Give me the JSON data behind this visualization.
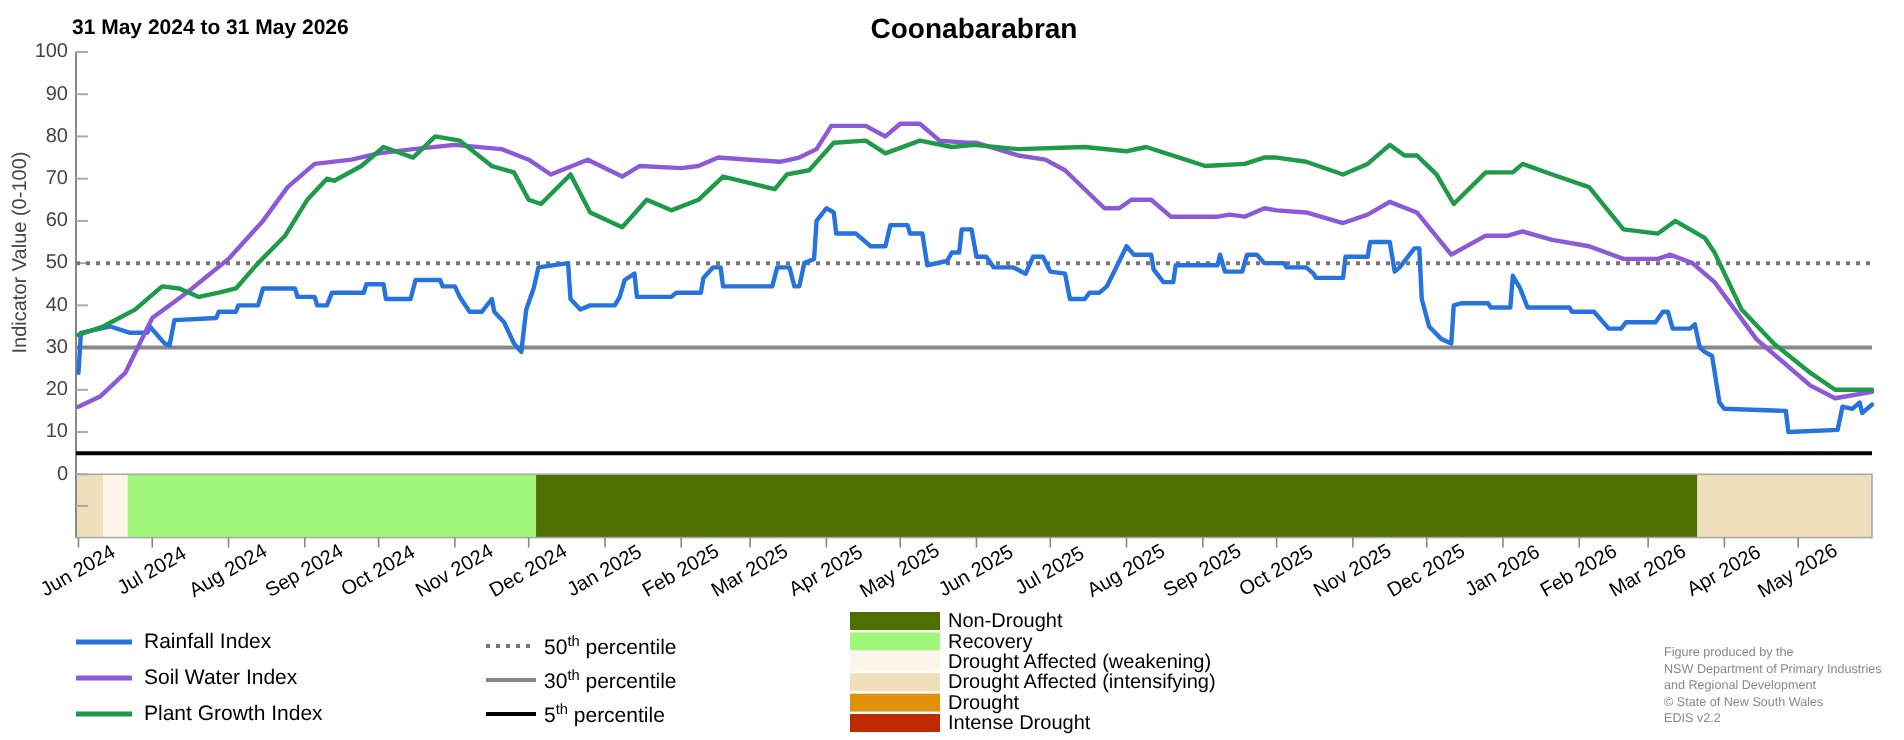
{
  "chart_data": {
    "type": "line",
    "title": "Coonabarabran",
    "subtitle": "31 May 2024 to 31 May 2026",
    "ylabel": "Indicator Value (0-100)",
    "xlim": [
      "2024-05-31",
      "2026-05-31"
    ],
    "xticks": [
      {
        "value": "2024-06-01",
        "label": "Jun 2024"
      },
      {
        "value": "2024-07-01",
        "label": "Jul 2024"
      },
      {
        "value": "2024-08-01",
        "label": "Aug 2024"
      },
      {
        "value": "2024-09-01",
        "label": "Sep 2024"
      },
      {
        "value": "2024-10-01",
        "label": "Oct 2024"
      },
      {
        "value": "2024-11-01",
        "label": "Nov 2024"
      },
      {
        "value": "2024-12-01",
        "label": "Dec 2024"
      },
      {
        "value": "2025-01-01",
        "label": "Jan 2025"
      },
      {
        "value": "2025-02-01",
        "label": "Feb 2025"
      },
      {
        "value": "2025-03-01",
        "label": "Mar 2025"
      },
      {
        "value": "2025-04-01",
        "label": "Apr 2025"
      },
      {
        "value": "2025-05-01",
        "label": "May 2025"
      },
      {
        "value": "2025-06-01",
        "label": "Jun 2025"
      },
      {
        "value": "2025-07-01",
        "label": "Jul 2025"
      },
      {
        "value": "2025-08-01",
        "label": "Aug 2025"
      },
      {
        "value": "2025-09-01",
        "label": "Sep 2025"
      },
      {
        "value": "2025-10-01",
        "label": "Oct 2025"
      },
      {
        "value": "2025-11-01",
        "label": "Nov 2025"
      },
      {
        "value": "2025-12-01",
        "label": "Dec 2025"
      },
      {
        "value": "2026-01-01",
        "label": "Jan 2026"
      },
      {
        "value": "2026-02-01",
        "label": "Feb 2026"
      },
      {
        "value": "2026-03-01",
        "label": "Mar 2026"
      },
      {
        "value": "2026-04-01",
        "label": "Apr 2026"
      },
      {
        "value": "2026-05-01",
        "label": "May 2026"
      }
    ],
    "ylim": [
      -15,
      100
    ],
    "yticks": [
      {
        "value": -7.5,
        "label": null
      },
      0,
      10,
      20,
      30,
      40,
      50,
      60,
      70,
      80,
      90,
      100
    ],
    "legend": "bottom",
    "series": [
      {
        "name": "Rainfall Index",
        "color": "#2673e0",
        "x": [
          "2024-06-01",
          "2024-06-02",
          "2024-06-14",
          "2024-06-22",
          "2024-06-29",
          "2024-06-30",
          "2024-07-06",
          "2024-07-08",
          "2024-07-10",
          "2024-07-27",
          "2024-07-28",
          "2024-08-04",
          "2024-08-05",
          "2024-08-13",
          "2024-08-15",
          "2024-08-28",
          "2024-08-29",
          "2024-09-05",
          "2024-09-06",
          "2024-09-10",
          "2024-09-12",
          "2024-09-25",
          "2024-09-26",
          "2024-10-03",
          "2024-10-04",
          "2024-10-14",
          "2024-10-16",
          "2024-10-26",
          "2024-10-27",
          "2024-11-01",
          "2024-11-03",
          "2024-11-07",
          "2024-11-12",
          "2024-11-16",
          "2024-11-17",
          "2024-11-21",
          "2024-11-25",
          "2024-11-28",
          "2024-11-30",
          "2024-12-03",
          "2024-12-05",
          "2024-12-17",
          "2024-12-18",
          "2024-12-22",
          "2024-12-26",
          "2025-01-05",
          "2025-01-07",
          "2025-01-09",
          "2025-01-13",
          "2025-01-14",
          "2025-01-28",
          "2025-01-30",
          "2025-02-09",
          "2025-02-10",
          "2025-02-14",
          "2025-02-17",
          "2025-02-18",
          "2025-03-10",
          "2025-03-12",
          "2025-03-17",
          "2025-03-19",
          "2025-03-21",
          "2025-03-23",
          "2025-03-27",
          "2025-03-28",
          "2025-04-01",
          "2025-04-04",
          "2025-04-05",
          "2025-04-13",
          "2025-04-19",
          "2025-04-25",
          "2025-04-27",
          "2025-05-04",
          "2025-05-05",
          "2025-05-10",
          "2025-05-12",
          "2025-05-20",
          "2025-05-22",
          "2025-05-25",
          "2025-05-26",
          "2025-05-30",
          "2025-06-01",
          "2025-06-05",
          "2025-06-08",
          "2025-06-16",
          "2025-06-21",
          "2025-06-24",
          "2025-06-28",
          "2025-07-01",
          "2025-07-07",
          "2025-07-09",
          "2025-07-15",
          "2025-07-17",
          "2025-07-21",
          "2025-07-24",
          "2025-07-27",
          "2025-08-01",
          "2025-08-04",
          "2025-08-11",
          "2025-08-12",
          "2025-08-16",
          "2025-08-20",
          "2025-08-21",
          "2025-09-07",
          "2025-09-08",
          "2025-09-10",
          "2025-09-17",
          "2025-09-19",
          "2025-09-23",
          "2025-09-26",
          "2025-10-04",
          "2025-10-05",
          "2025-10-13",
          "2025-10-16",
          "2025-10-17",
          "2025-10-28",
          "2025-10-29",
          "2025-11-07",
          "2025-11-08",
          "2025-11-16",
          "2025-11-18",
          "2025-11-20",
          "2025-11-26",
          "2025-11-28",
          "2025-11-29",
          "2025-12-02",
          "2025-12-07",
          "2025-12-11",
          "2025-12-12",
          "2025-12-15",
          "2025-12-26",
          "2025-12-27",
          "2026-01-04",
          "2026-01-05",
          "2026-01-08",
          "2026-01-11",
          "2026-01-28",
          "2026-01-29",
          "2026-02-07",
          "2026-02-13",
          "2026-02-18",
          "2026-02-20",
          "2026-03-04",
          "2026-03-07",
          "2026-03-09",
          "2026-03-11",
          "2026-03-18",
          "2026-03-20",
          "2026-03-22",
          "2026-03-24",
          "2026-03-27",
          "2026-03-30",
          "2026-04-01",
          "2026-04-26",
          "2026-04-27",
          "2026-05-17",
          "2026-05-19",
          "2026-05-23",
          "2026-05-26",
          "2026-05-27",
          "2026-05-31"
        ],
        "values": [
          24,
          33.5,
          35,
          33.5,
          33.5,
          35,
          31,
          30.5,
          36.5,
          37,
          38.5,
          38.5,
          40,
          40,
          44,
          44,
          42,
          42,
          40,
          40,
          43,
          43,
          45,
          45,
          41.5,
          41.5,
          46,
          46,
          44.5,
          44.5,
          42,
          38.5,
          38.5,
          41.5,
          38.5,
          36,
          31,
          29,
          39,
          44,
          49,
          50,
          41.5,
          39,
          40,
          40,
          42,
          46,
          47.5,
          42,
          42,
          43,
          43,
          46.5,
          49,
          49,
          44.5,
          44.5,
          49,
          49,
          44.5,
          44.5,
          50,
          51,
          60,
          63,
          62,
          57,
          57,
          54,
          54,
          59,
          59,
          57,
          57,
          49.5,
          50.5,
          52.5,
          52.5,
          58,
          58,
          51.5,
          51.5,
          49,
          49,
          47.5,
          51.5,
          51.5,
          48,
          47.5,
          41.5,
          41.5,
          43,
          43,
          44.5,
          48,
          54,
          52,
          52,
          48.5,
          45.5,
          45.5,
          49.5,
          49.5,
          52,
          48,
          48,
          52,
          52,
          50,
          50,
          49,
          49,
          47.5,
          46.5,
          46.5,
          51.5,
          51.5,
          55,
          55,
          48,
          49,
          53.5,
          53.5,
          41.5,
          35,
          32,
          31,
          40,
          40.5,
          40.5,
          39.5,
          39.5,
          47,
          44,
          39.5,
          39.5,
          38.5,
          38.5,
          34.5,
          34.5,
          36,
          36,
          38.5,
          38.5,
          34.5,
          34.5,
          35.5,
          30,
          29,
          28,
          17,
          15.5,
          15,
          10,
          10.5,
          16,
          15.5,
          17,
          14.5,
          16.5
        ]
      },
      {
        "name": "Soil Water Index",
        "color": "#8c5ad8",
        "x": [
          "2024-06-01",
          "2024-06-10",
          "2024-06-20",
          "2024-07-01",
          "2024-07-15",
          "2024-08-01",
          "2024-08-15",
          "2024-08-25",
          "2024-09-05",
          "2024-09-20",
          "2024-10-01",
          "2024-10-15",
          "2024-11-01",
          "2024-11-20",
          "2024-12-01",
          "2024-12-10",
          "2024-12-25",
          "2025-01-08",
          "2025-01-15",
          "2025-02-01",
          "2025-02-08",
          "2025-02-16",
          "2025-03-13",
          "2025-03-21",
          "2025-03-28",
          "2025-04-03",
          "2025-04-17",
          "2025-04-25",
          "2025-05-01",
          "2025-05-09",
          "2025-05-17",
          "2025-05-28",
          "2025-06-01",
          "2025-06-18",
          "2025-06-29",
          "2025-07-07",
          "2025-07-23",
          "2025-07-29",
          "2025-08-03",
          "2025-08-11",
          "2025-08-19",
          "2025-09-07",
          "2025-09-12",
          "2025-09-18",
          "2025-09-26",
          "2025-10-01",
          "2025-10-13",
          "2025-10-28",
          "2025-11-07",
          "2025-11-16",
          "2025-11-27",
          "2025-12-11",
          "2025-12-25",
          "2026-01-03",
          "2026-01-09",
          "2026-01-21",
          "2026-02-05",
          "2026-02-19",
          "2026-03-05",
          "2026-03-10",
          "2026-03-19",
          "2026-03-28",
          "2026-04-14",
          "2026-04-24",
          "2026-05-06",
          "2026-05-16",
          "2026-05-31"
        ],
        "values": [
          16,
          18.5,
          24,
          37,
          43,
          51,
          60,
          68,
          73.5,
          74.5,
          76,
          77,
          78,
          77,
          74.5,
          71,
          74.5,
          70.5,
          73,
          72.5,
          73,
          75,
          74,
          75,
          77,
          82.5,
          82.5,
          80,
          83,
          83,
          79,
          78.5,
          78.5,
          75.5,
          74.5,
          72,
          63,
          63,
          65,
          65,
          61,
          61,
          61.5,
          61,
          63,
          62.5,
          62,
          59.5,
          61.5,
          64.5,
          62,
          52,
          56.5,
          56.5,
          57.5,
          55.5,
          54,
          51,
          51,
          52,
          50,
          45.5,
          32,
          27,
          21,
          18,
          19.5
        ]
      },
      {
        "name": "Plant Growth Index",
        "color": "#1e9a48",
        "x": [
          "2024-06-01",
          "2024-06-11",
          "2024-06-24",
          "2024-07-05",
          "2024-07-12",
          "2024-07-20",
          "2024-07-28",
          "2024-08-04",
          "2024-08-13",
          "2024-08-24",
          "2024-09-02",
          "2024-09-10",
          "2024-09-13",
          "2024-09-24",
          "2024-10-03",
          "2024-10-15",
          "2024-10-24",
          "2024-11-03",
          "2024-11-16",
          "2024-11-25",
          "2024-12-01",
          "2024-12-06",
          "2024-12-18",
          "2024-12-26",
          "2025-01-08",
          "2025-01-18",
          "2025-01-28",
          "2025-02-08",
          "2025-02-18",
          "2025-03-11",
          "2025-03-16",
          "2025-03-25",
          "2025-04-04",
          "2025-04-17",
          "2025-04-25",
          "2025-05-09",
          "2025-05-22",
          "2025-05-31",
          "2025-06-18",
          "2025-07-15",
          "2025-08-01",
          "2025-08-09",
          "2025-08-25",
          "2025-09-02",
          "2025-09-18",
          "2025-09-26",
          "2025-10-01",
          "2025-10-13",
          "2025-10-28",
          "2025-11-07",
          "2025-11-16",
          "2025-11-22",
          "2025-11-27",
          "2025-12-05",
          "2025-12-12",
          "2025-12-25",
          "2026-01-05",
          "2026-01-09",
          "2026-01-21",
          "2026-02-05",
          "2026-02-19",
          "2026-03-05",
          "2026-03-12",
          "2026-03-24",
          "2026-03-28",
          "2026-04-08",
          "2026-04-21",
          "2026-05-06",
          "2026-05-16",
          "2026-05-31"
        ],
        "values": [
          33,
          35,
          39,
          44.5,
          44,
          42,
          43,
          44,
          50,
          56.5,
          65,
          70,
          69.5,
          73,
          77.5,
          75,
          80,
          79,
          73,
          71.5,
          65,
          64,
          71,
          62,
          58.5,
          65,
          62.5,
          65,
          70.5,
          67.5,
          71,
          72,
          78.5,
          79,
          76,
          79,
          77.5,
          78,
          77,
          77.5,
          76.5,
          77.5,
          74.5,
          73,
          73.5,
          75,
          75,
          74,
          71,
          73.5,
          78,
          75.5,
          75.5,
          71,
          64,
          71.5,
          71.5,
          73.5,
          71,
          68,
          58,
          57,
          60,
          56,
          52.5,
          39,
          31,
          24,
          20,
          20
        ]
      }
    ],
    "ref_lines": [
      {
        "axis": "y",
        "value": 50,
        "label": "50$^{th}$ percentile",
        "color": "#777777",
        "line_style": "dotted"
      },
      {
        "axis": "y",
        "value": 30,
        "label": "30$^{th}$ percentile",
        "color": "#888888",
        "line_style": "solid"
      },
      {
        "axis": "y",
        "value": 5,
        "label": "5$^{th}$ percentile",
        "color": "#000000",
        "line_style": "solid"
      }
    ],
    "bands": [
      {
        "axis": "x",
        "from": "2024-05-31",
        "to": "2024-06-11",
        "color": "#efe0bb"
      },
      {
        "axis": "x",
        "from": "2024-06-11",
        "to": "2024-06-21",
        "color": "#fdf6e8"
      },
      {
        "axis": "x",
        "from": "2024-06-21",
        "to": "2024-12-04",
        "color": "#a0f77a"
      },
      {
        "axis": "x",
        "from": "2024-12-04",
        "to": "2026-03-21",
        "color": "#4d7000"
      },
      {
        "axis": "x",
        "from": "2026-03-21",
        "to": "2026-05-31",
        "color": "#efe0bb"
      }
    ],
    "annotations": [
      "Non-Drought",
      "Recovery",
      "Drought Affected (weakening)",
      "Drought Affected (intensifying)",
      "Drought",
      "Intense Drought",
      "Figure produced by the",
      "NSW Department of Primary Industries",
      "and Regional Development",
      "© State of New South Wales",
      "EDIS v2.2"
    ]
  }
}
